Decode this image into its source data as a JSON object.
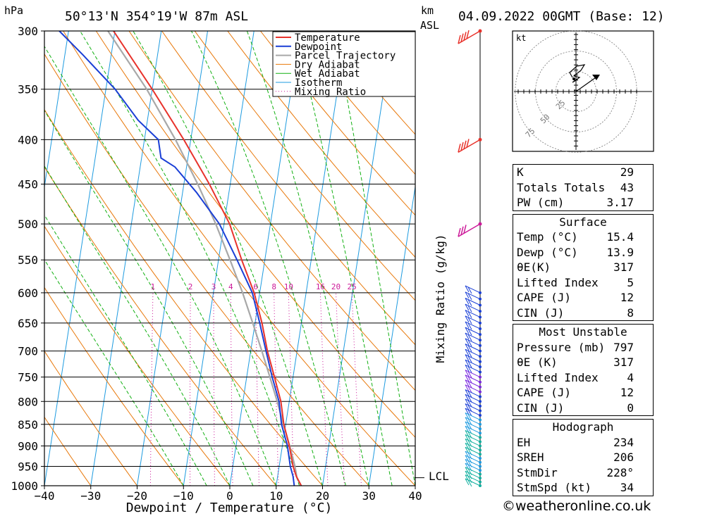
{
  "header": {
    "location": "50°13'N 354°19'W 87m ASL",
    "datetime": "04.09.2022 00GMT (Base: 12)",
    "hpa_unit": "hPa",
    "km_unit": "km",
    "asl_unit": "ASL"
  },
  "colors": {
    "temperature": "#e8322b",
    "dewpoint": "#1a3fd6",
    "parcel": "#a8a8a8",
    "dry_adiabat": "#e8780a",
    "wet_adiabat": "#12b012",
    "isotherm": "#1e9be0",
    "mixing_ratio": "#cc1a99"
  },
  "chart_data": {
    "type": "line",
    "title": "50°13'N 354°19'W 87m ASL",
    "xlabel": "Dewpoint / Temperature (°C)",
    "ylabel": "hPa",
    "y2label": "Mixing Ratio (g/kg)",
    "xlim": [
      -40,
      40
    ],
    "ylim": [
      1000,
      300
    ],
    "y_scale": "log",
    "x_ticks": [
      "−40",
      "−30",
      "−20",
      "−10",
      "0",
      "10",
      "20",
      "30",
      "40"
    ],
    "pressure_levels": [
      300,
      350,
      400,
      450,
      500,
      550,
      600,
      650,
      700,
      750,
      800,
      850,
      900,
      950,
      1000
    ],
    "mixing_ratio_labels": [
      "1",
      "2",
      "3",
      "4",
      "6",
      "8",
      "10",
      "16",
      "20",
      "25"
    ],
    "mixing_ratio_values": [
      1,
      2,
      3,
      4,
      6,
      8,
      10,
      16,
      20,
      25
    ],
    "lcl_label": "LCL",
    "lcl_pressure": 979,
    "legend": [
      "Temperature",
      "Dewpoint",
      "Parcel Trajectory",
      "Dry Adiabat",
      "Wet Adiabat",
      "Isotherm",
      "Mixing Ratio"
    ],
    "legend_position": "top-right",
    "series": [
      {
        "name": "Temperature",
        "points": [
          [
            1000,
            15.4
          ],
          [
            975,
            14.0
          ],
          [
            950,
            13.0
          ],
          [
            900,
            11.5
          ],
          [
            850,
            9.6
          ],
          [
            800,
            8.2
          ],
          [
            750,
            6.0
          ],
          [
            700,
            3.6
          ],
          [
            650,
            1.5
          ],
          [
            600,
            -1.2
          ],
          [
            550,
            -5.0
          ],
          [
            500,
            -8.8
          ],
          [
            450,
            -14.5
          ],
          [
            400,
            -21.5
          ],
          [
            350,
            -30.0
          ],
          [
            300,
            -40.3
          ]
        ]
      },
      {
        "name": "Dewpoint",
        "points": [
          [
            1000,
            13.9
          ],
          [
            975,
            13.3
          ],
          [
            950,
            12.4
          ],
          [
            900,
            11.1
          ],
          [
            850,
            9.1
          ],
          [
            800,
            7.8
          ],
          [
            750,
            5.5
          ],
          [
            700,
            3.3
          ],
          [
            650,
            1.0
          ],
          [
            600,
            -1.6
          ],
          [
            550,
            -6.0
          ],
          [
            500,
            -11.0
          ],
          [
            460,
            -17.0
          ],
          [
            430,
            -22.5
          ],
          [
            420,
            -25.8
          ],
          [
            400,
            -27.0
          ],
          [
            380,
            -32.0
          ],
          [
            350,
            -38.0
          ],
          [
            320,
            -46.0
          ],
          [
            300,
            -52.0
          ]
        ]
      },
      {
        "name": "Parcel Trajectory",
        "points": [
          [
            1000,
            15.4
          ],
          [
            979,
            14.2
          ],
          [
            950,
            13.4
          ],
          [
            900,
            11.6
          ],
          [
            850,
            9.5
          ],
          [
            800,
            7.4
          ],
          [
            750,
            5.0
          ],
          [
            700,
            2.4
          ],
          [
            650,
            -0.5
          ],
          [
            600,
            -3.7
          ],
          [
            550,
            -7.5
          ],
          [
            500,
            -11.8
          ],
          [
            450,
            -17.0
          ],
          [
            400,
            -23.3
          ],
          [
            350,
            -31.2
          ],
          [
            300,
            -41.5
          ]
        ]
      }
    ],
    "wind_barbs_highlighted": [
      {
        "pressure": 300,
        "speed_kt": 45,
        "color": "red"
      },
      {
        "pressure": 400,
        "speed_kt": 40,
        "color": "red"
      },
      {
        "pressure": 500,
        "speed_kt": 30,
        "color": "magenta"
      }
    ]
  },
  "hodograph": {
    "unit": "kt",
    "ring_labels": [
      "25",
      "50",
      "75"
    ]
  },
  "indices": {
    "rows": [
      {
        "label": "K",
        "value": "29"
      },
      {
        "label": "Totals Totals",
        "value": "43"
      },
      {
        "label": "PW (cm)",
        "value": "3.17"
      }
    ]
  },
  "surface": {
    "title": "Surface",
    "rows": [
      {
        "label": "Temp (°C)",
        "value": "15.4"
      },
      {
        "label": "Dewp (°C)",
        "value": "13.9"
      },
      {
        "label": "θE(K)",
        "value": "317"
      },
      {
        "label": "Lifted Index",
        "value": "5"
      },
      {
        "label": "CAPE (J)",
        "value": "12"
      },
      {
        "label": "CIN (J)",
        "value": "8"
      }
    ]
  },
  "most_unstable": {
    "title": "Most Unstable",
    "rows": [
      {
        "label": "Pressure (mb)",
        "value": "797"
      },
      {
        "label": "θE (K)",
        "value": "317"
      },
      {
        "label": "Lifted Index",
        "value": "4"
      },
      {
        "label": "CAPE (J)",
        "value": "12"
      },
      {
        "label": "CIN (J)",
        "value": "0"
      }
    ]
  },
  "hodograph_stats": {
    "title": "Hodograph",
    "rows": [
      {
        "label": "EH",
        "value": "234"
      },
      {
        "label": "SREH",
        "value": "206"
      },
      {
        "label": "StmDir",
        "value": "228°"
      },
      {
        "label": "StmSpd (kt)",
        "value": "34"
      }
    ]
  },
  "footer": {
    "credit": "©weatheronline.co.uk"
  }
}
